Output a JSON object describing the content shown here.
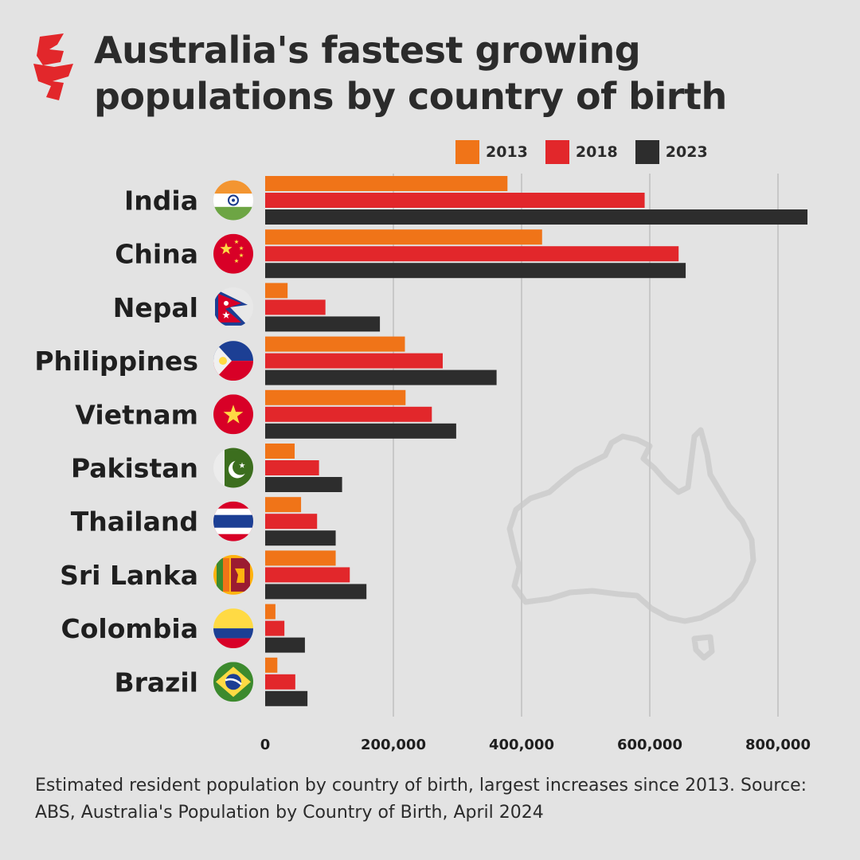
{
  "title": "Australia's fastest growing populations by country of birth",
  "caption": "Estimated resident population by country of birth, largest increases since 2013.  Source: ABS, Australia's Population by Country of Birth, April 2024",
  "logo_icon": "sbs-logo-icon",
  "colors": {
    "2013": "#f07418",
    "2018": "#e2272b",
    "2023": "#2d2d2d",
    "gridline": "#c8c8c8",
    "map_outline": "#cfcfcf"
  },
  "chart_data": {
    "type": "bar",
    "orientation": "horizontal",
    "categories": [
      "India",
      "China",
      "Nepal",
      "Philippines",
      "Vietnam",
      "Pakistan",
      "Thailand",
      "Sri Lanka",
      "Colombia",
      "Brazil"
    ],
    "series": [
      {
        "name": "2013",
        "values": [
          378000,
          432000,
          35000,
          218000,
          219000,
          46000,
          56000,
          110000,
          16000,
          19000
        ]
      },
      {
        "name": "2018",
        "values": [
          592000,
          645000,
          94000,
          277000,
          260000,
          84000,
          81000,
          132000,
          30000,
          47000
        ]
      },
      {
        "name": "2023",
        "values": [
          846000,
          656000,
          179000,
          361000,
          298000,
          120000,
          110000,
          158000,
          62000,
          66000
        ]
      }
    ],
    "xlim": [
      0,
      850000
    ],
    "xticks": [
      0,
      200000,
      400000,
      600000,
      800000
    ],
    "xtick_labels": [
      "0",
      "200,000",
      "400,000",
      "600,000",
      "800,000"
    ],
    "grid": true,
    "legend": "top-right",
    "category_icons": [
      "india-flag-icon",
      "china-flag-icon",
      "nepal-flag-icon",
      "philippines-flag-icon",
      "vietnam-flag-icon",
      "pakistan-flag-icon",
      "thailand-flag-icon",
      "sri-lanka-flag-icon",
      "colombia-flag-icon",
      "brazil-flag-icon"
    ],
    "background_icon": "australia-map-outline-icon"
  }
}
